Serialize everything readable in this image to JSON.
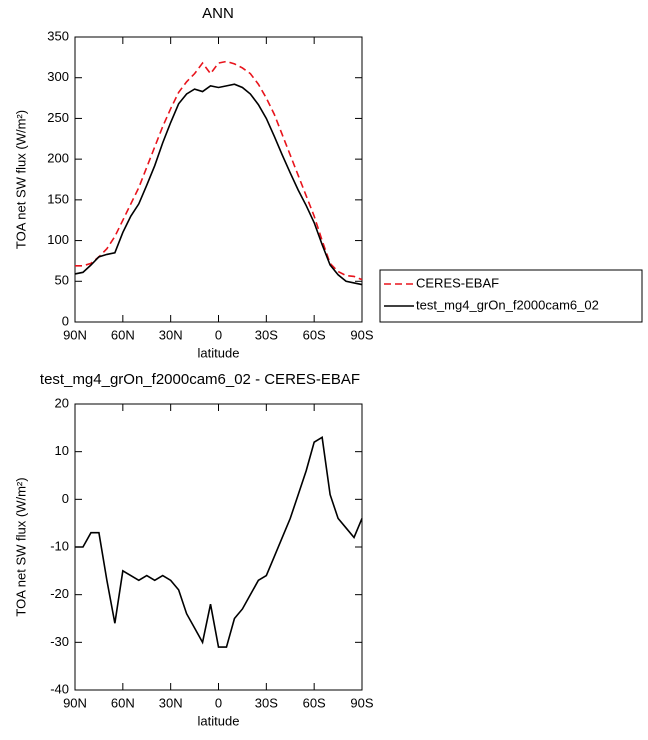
{
  "chart_data": [
    {
      "type": "line",
      "title": "ANN",
      "xlabel": "latitude",
      "ylabel": "TOA net SW flux (W/m²)",
      "x": [
        90,
        85,
        80,
        75,
        70,
        65,
        60,
        55,
        50,
        45,
        40,
        35,
        30,
        25,
        20,
        15,
        10,
        5,
        0,
        -5,
        -10,
        -15,
        -20,
        -25,
        -30,
        -35,
        -40,
        -45,
        -50,
        -55,
        -60,
        -65,
        -70,
        -75,
        -80,
        -85,
        -90
      ],
      "series": [
        {
          "name": "CERES-EBAF",
          "color": "#e8141c",
          "style": "dashed",
          "values": [
            69,
            69,
            72,
            80,
            90,
            105,
            125,
            145,
            165,
            190,
            215,
            240,
            262,
            282,
            295,
            305,
            318,
            305,
            318,
            320,
            317,
            312,
            305,
            292,
            275,
            255,
            230,
            205,
            180,
            155,
            130,
            100,
            72,
            62,
            57,
            56,
            52
          ]
        },
        {
          "name": "test_mg4_grOn_f2000cam6_02",
          "color": "#000000",
          "style": "solid",
          "values": [
            59,
            61,
            70,
            80,
            83,
            85,
            110,
            130,
            145,
            168,
            192,
            220,
            245,
            268,
            280,
            286,
            283,
            290,
            288,
            290,
            292,
            288,
            280,
            267,
            250,
            228,
            205,
            183,
            162,
            143,
            122,
            95,
            70,
            58,
            50,
            48,
            46
          ]
        }
      ],
      "xlim": [
        90,
        -90
      ],
      "xticks": [
        {
          "value": 90,
          "label": "90N"
        },
        {
          "value": 60,
          "label": "60N"
        },
        {
          "value": 30,
          "label": "30N"
        },
        0,
        {
          "value": -30,
          "label": "30S"
        },
        {
          "value": -60,
          "label": "60S"
        },
        {
          "value": -90,
          "label": "90S"
        }
      ],
      "ylim": [
        0,
        350
      ],
      "yticks": [
        0,
        50,
        100,
        150,
        200,
        250,
        300,
        350
      ],
      "legend": "right"
    },
    {
      "type": "line",
      "title": "test_mg4_grOn_f2000cam6_02 - CERES-EBAF",
      "xlabel": "latitude",
      "ylabel": "TOA net SW flux (W/m²)",
      "x": [
        90,
        85,
        80,
        75,
        70,
        65,
        60,
        55,
        50,
        45,
        40,
        35,
        30,
        25,
        20,
        15,
        10,
        5,
        0,
        -5,
        -10,
        -15,
        -20,
        -25,
        -30,
        -35,
        -40,
        -45,
        -50,
        -55,
        -60,
        -65,
        -70,
        -75,
        -80,
        -85,
        -90
      ],
      "series": [
        {
          "color": "#000000",
          "style": "solid",
          "values": [
            -10,
            -10,
            -7,
            -7,
            -17,
            -26,
            -15,
            -16,
            -17,
            -16,
            -17,
            -16,
            -17,
            -19,
            -24,
            -27,
            -30,
            -22,
            -31,
            -31,
            -25,
            -23,
            -20,
            -17,
            -16,
            -12,
            -8,
            -4,
            1,
            6,
            12,
            13,
            1,
            -4,
            -6,
            -8,
            -4
          ]
        }
      ],
      "xlim": [
        90,
        -90
      ],
      "xticks": [
        {
          "value": 90,
          "label": "90N"
        },
        {
          "value": 60,
          "label": "60N"
        },
        {
          "value": 30,
          "label": "30N"
        },
        0,
        {
          "value": -30,
          "label": "30S"
        },
        {
          "value": -60,
          "label": "60S"
        },
        {
          "value": -90,
          "label": "90S"
        }
      ],
      "ylim": [
        -40,
        20
      ],
      "yticks": [
        -40,
        -30,
        -20,
        -10,
        0,
        10,
        20
      ]
    }
  ]
}
